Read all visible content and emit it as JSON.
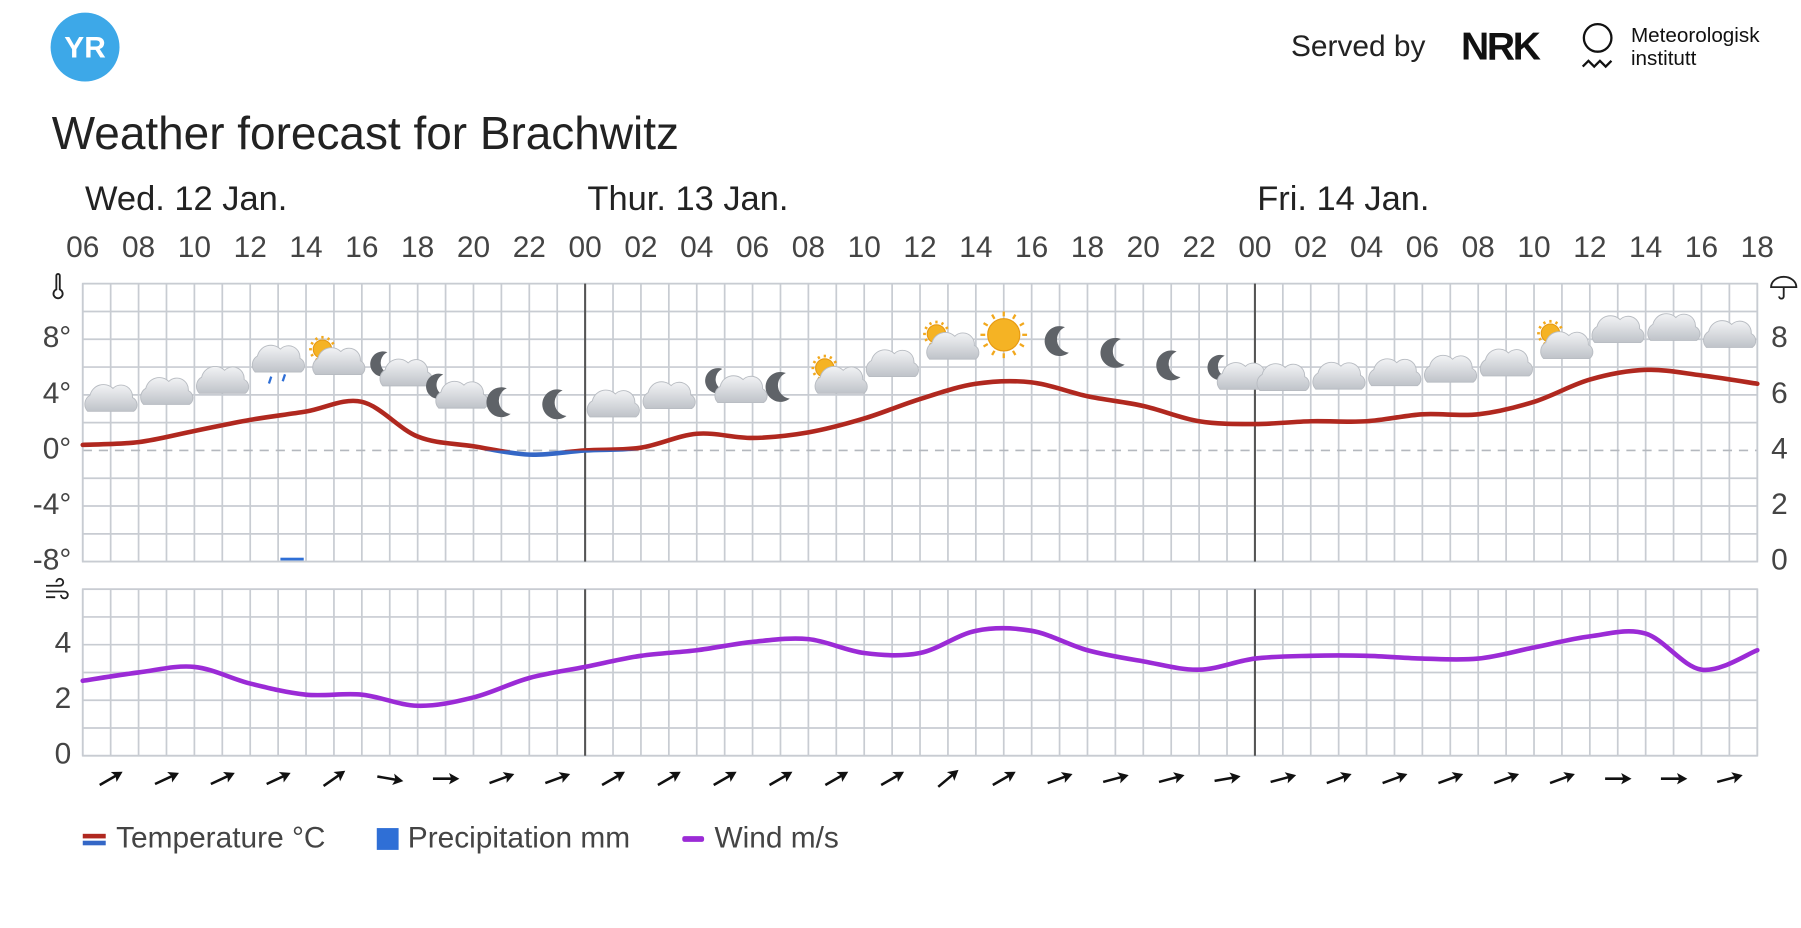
{
  "header": {
    "logo": "YR",
    "served_by": "Served by",
    "nrk": "NRK",
    "met_line1": "Meteorologisk",
    "met_line2": "institutt"
  },
  "chart_data": {
    "type": "line",
    "title": "Weather forecast for Brachwitz",
    "days": [
      "Wed. 12 Jan.",
      "Thur. 13 Jan.",
      "Fri. 14 Jan."
    ],
    "categories": [
      "06",
      "08",
      "10",
      "12",
      "14",
      "16",
      "18",
      "20",
      "22",
      "00",
      "02",
      "04",
      "06",
      "08",
      "10",
      "12",
      "14",
      "16",
      "18",
      "20",
      "22",
      "00",
      "02",
      "04",
      "06",
      "08",
      "10",
      "12",
      "14",
      "16",
      "18"
    ],
    "series": [
      {
        "name": "Temperature °C",
        "color": "#b0281f",
        "negative_color": "#3467c6",
        "values": [
          0.4,
          0.6,
          1.4,
          2.2,
          2.8,
          3.5,
          1.0,
          0.3,
          -0.3,
          0.0,
          0.2,
          1.2,
          0.9,
          1.3,
          2.3,
          3.7,
          4.8,
          4.9,
          3.9,
          3.2,
          2.1,
          1.9,
          2.1,
          2.1,
          2.6,
          2.6,
          3.5,
          5.1,
          5.8,
          5.4,
          4.8
        ]
      },
      {
        "name": "Precipitation mm",
        "color": "#2f6fd6",
        "axis": "y2",
        "values": [
          0,
          0,
          0,
          0,
          0.1,
          0,
          0,
          0,
          0,
          0,
          0,
          0,
          0,
          0,
          0,
          0,
          0,
          0,
          0,
          0,
          0,
          0,
          0,
          0,
          0,
          0,
          0,
          0,
          0,
          0,
          0
        ]
      },
      {
        "name": "Wind m/s",
        "color": "#9b2bd6",
        "axis": "wind",
        "values": [
          2.7,
          3.0,
          3.2,
          2.6,
          2.2,
          2.2,
          1.8,
          2.1,
          2.8,
          3.2,
          3.6,
          3.8,
          4.1,
          4.2,
          3.7,
          3.7,
          4.5,
          4.5,
          3.8,
          3.4,
          3.1,
          3.5,
          3.6,
          3.6,
          3.5,
          3.5,
          3.9,
          4.3,
          4.4,
          3.1,
          3.8
        ]
      }
    ],
    "ylim": [
      -8,
      12
    ],
    "yticks": [
      {
        "value": -8,
        "label": "-8°"
      },
      {
        "value": -4,
        "label": "-4°"
      },
      {
        "value": 0,
        "label": "0°"
      },
      {
        "value": 4,
        "label": "4°"
      },
      {
        "value": 8,
        "label": "8°"
      }
    ],
    "y2lim": [
      0,
      10
    ],
    "y2ticks": [
      0,
      2,
      4,
      6,
      8
    ],
    "wind_ylim": [
      0,
      6
    ],
    "wind_yticks": [
      0,
      2,
      4
    ],
    "grid": true,
    "weather_symbols": [
      "cloud",
      "cloud",
      "cloud",
      "rain",
      "sun-cloud",
      "moon-cloud",
      "moon-cloud",
      "moon",
      "moon",
      "cloud",
      "cloud",
      "moon-cloud",
      "moon",
      "sun-cloud",
      "cloud",
      "sun-cloud",
      "sun",
      "moon",
      "moon",
      "moon",
      "moon-cloud",
      "cloud",
      "cloud",
      "cloud",
      "cloud",
      "cloud",
      "sun-cloud",
      "cloud",
      "cloud",
      "cloud"
    ],
    "wind_directions": [
      -30,
      -25,
      -25,
      -25,
      -35,
      10,
      0,
      -20,
      -20,
      -30,
      -30,
      -30,
      -30,
      -30,
      -30,
      -40,
      -30,
      -20,
      -15,
      -15,
      -10,
      -15,
      -20,
      -20,
      -20,
      -20,
      -20,
      0,
      0,
      -15
    ]
  }
}
